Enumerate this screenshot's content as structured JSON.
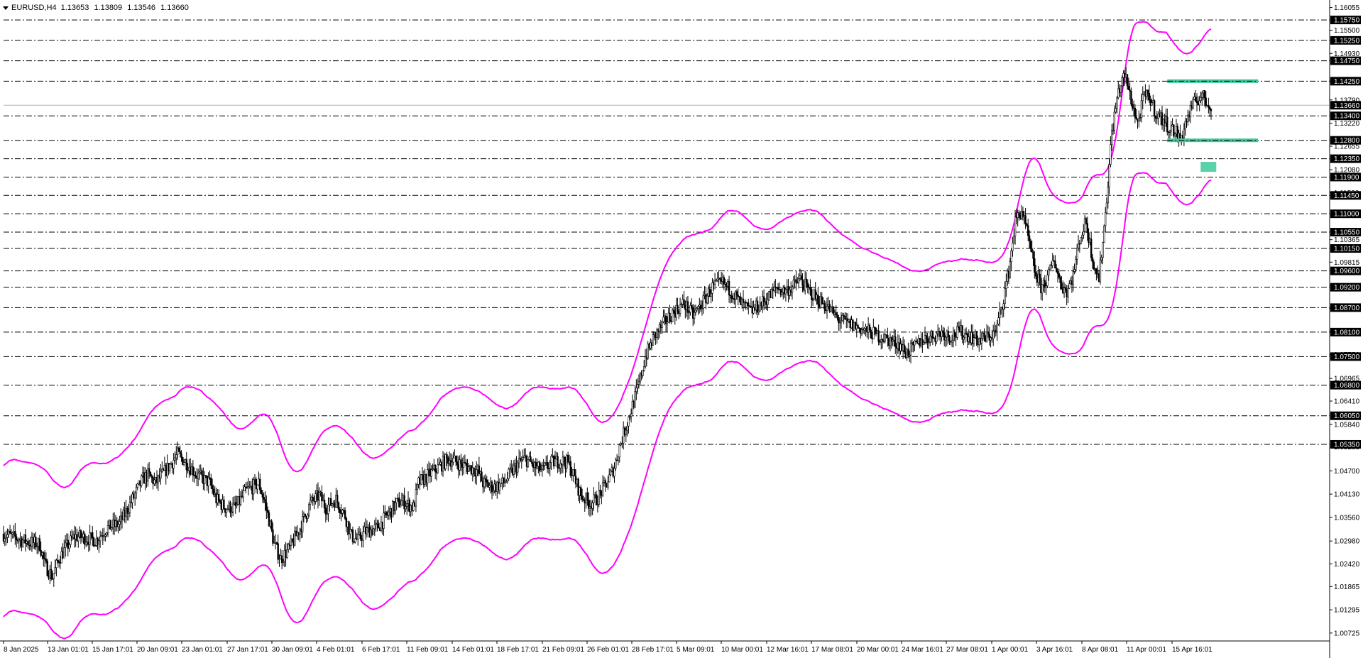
{
  "header": {
    "symbol": "EURUSD,H4",
    "ohlc": [
      "1.13653",
      "1.13809",
      "1.13546",
      "1.13660"
    ]
  },
  "colors": {
    "background": "#ffffff",
    "candle": "#000000",
    "envelope": "#ff00ff",
    "level_line": "#000000",
    "zone": "#3cc99a",
    "current_price_bg": "#000000",
    "current_price_line": "#b0b0b0"
  },
  "chart_data": {
    "type": "candlestick",
    "symbol": "EURUSD",
    "timeframe": "H4",
    "ylim": [
      1.0067,
      1.161
    ],
    "grid": false,
    "y_ticks": [
      "1.16055",
      "1.15500",
      "1.14930",
      "1.14250",
      "1.13790",
      "1.13220",
      "1.12655",
      "1.12080",
      "1.11520",
      "1.10365",
      "1.09815",
      "1.09240",
      "1.08685",
      "1.08110",
      "1.07550",
      "1.06965",
      "1.06410",
      "1.05840",
      "1.05285",
      "1.04700",
      "1.04130",
      "1.03560",
      "1.02980",
      "1.02420",
      "1.01865",
      "1.01295",
      "1.00725"
    ],
    "levels": [
      "1.15750",
      "1.15250",
      "1.14750",
      "1.14250",
      "1.13400",
      "1.12800",
      "1.12350",
      "1.11900",
      "1.11450",
      "1.11000",
      "1.10550",
      "1.10150",
      "1.09600",
      "1.09200",
      "1.08700",
      "1.08100",
      "1.07500",
      "1.06800",
      "1.06050",
      "1.05350"
    ],
    "current_price": "1.13660",
    "x_labels": [
      "8 Jan 2025",
      "13 Jan 01:01",
      "15 Jan 17:01",
      "20 Jan 09:01",
      "23 Jan 01:01",
      "27 Jan 17:01",
      "30 Jan 09:01",
      "4 Feb 01:01",
      "6 Feb 17:01",
      "11 Feb 09:01",
      "14 Feb 01:01",
      "18 Feb 17:01",
      "21 Feb 09:01",
      "26 Feb 01:01",
      "28 Feb 17:01",
      "5 Mar 09:01",
      "10 Mar 00:01",
      "12 Mar 16:01",
      "17 Mar 08:01",
      "20 Mar 00:01",
      "24 Mar 16:01",
      "27 Mar 08:01",
      "1 Apr 00:01",
      "3 Apr 16:01",
      "8 Apr 08:01",
      "11 Apr 00:01",
      "15 Apr 16:01"
    ],
    "close_path": [
      [
        0,
        1.0315
      ],
      [
        10,
        1.0305
      ],
      [
        20,
        1.0295
      ],
      [
        28,
        1.029
      ],
      [
        32,
        1.024
      ],
      [
        38,
        1.021
      ],
      [
        43,
        1.0255
      ],
      [
        48,
        1.028
      ],
      [
        55,
        1.031
      ],
      [
        65,
        1.0305
      ],
      [
        72,
        1.03
      ],
      [
        80,
        1.033
      ],
      [
        90,
        1.034
      ],
      [
        100,
        1.04
      ],
      [
        108,
        1.045
      ],
      [
        112,
        1.046
      ],
      [
        118,
        1.044
      ],
      [
        128,
        1.048
      ],
      [
        135,
        1.051
      ],
      [
        142,
        1.049
      ],
      [
        150,
        1.046
      ],
      [
        160,
        1.044
      ],
      [
        165,
        1.04
      ],
      [
        172,
        1.038
      ],
      [
        180,
        1.038
      ],
      [
        188,
        1.042
      ],
      [
        198,
        1.044
      ],
      [
        202,
        1.04
      ],
      [
        206,
        1.035
      ],
      [
        210,
        1.029
      ],
      [
        215,
        1.0255
      ],
      [
        222,
        1.028
      ],
      [
        230,
        1.033
      ],
      [
        238,
        1.039
      ],
      [
        245,
        1.041
      ],
      [
        250,
        1.038
      ],
      [
        258,
        1.04
      ],
      [
        265,
        1.036
      ],
      [
        270,
        1.031
      ],
      [
        275,
        1.03
      ],
      [
        280,
        1.032
      ],
      [
        290,
        1.033
      ],
      [
        300,
        1.037
      ],
      [
        305,
        1.039
      ],
      [
        310,
        1.0395
      ],
      [
        318,
        1.038
      ],
      [
        322,
        1.044
      ],
      [
        330,
        1.046
      ],
      [
        338,
        1.048
      ],
      [
        345,
        1.05
      ],
      [
        352,
        1.049
      ],
      [
        360,
        1.048
      ],
      [
        368,
        1.047
      ],
      [
        372,
        1.044
      ],
      [
        380,
        1.043
      ],
      [
        388,
        1.044
      ],
      [
        395,
        1.047
      ],
      [
        400,
        1.049
      ],
      [
        405,
        1.05
      ],
      [
        412,
        1.048
      ],
      [
        418,
        1.047
      ],
      [
        425,
        1.049
      ],
      [
        432,
        1.0495
      ],
      [
        438,
        1.049
      ],
      [
        442,
        1.046
      ],
      [
        448,
        1.041
      ],
      [
        455,
        1.039
      ],
      [
        460,
        1.04
      ],
      [
        468,
        1.044
      ],
      [
        474,
        1.048
      ],
      [
        478,
        1.053
      ],
      [
        485,
        1.06
      ],
      [
        492,
        1.067
      ],
      [
        498,
        1.075
      ],
      [
        505,
        1.08
      ],
      [
        512,
        1.083
      ],
      [
        520,
        1.086
      ],
      [
        528,
        1.088
      ],
      [
        535,
        1.085
      ],
      [
        542,
        1.088
      ],
      [
        550,
        1.092
      ],
      [
        558,
        1.093
      ],
      [
        565,
        1.091
      ],
      [
        572,
        1.088
      ],
      [
        580,
        1.086
      ],
      [
        588,
        1.088
      ],
      [
        595,
        1.09
      ],
      [
        600,
        1.092
      ],
      [
        605,
        1.091
      ],
      [
        612,
        1.092
      ],
      [
        618,
        1.094
      ],
      [
        625,
        1.091
      ],
      [
        632,
        1.089
      ],
      [
        640,
        1.087
      ],
      [
        648,
        1.084
      ],
      [
        656,
        1.083
      ],
      [
        664,
        1.082
      ],
      [
        672,
        1.081
      ],
      [
        680,
        1.08
      ],
      [
        688,
        1.079
      ],
      [
        695,
        1.078
      ],
      [
        700,
        1.076
      ],
      [
        706,
        1.077
      ],
      [
        712,
        1.079
      ],
      [
        720,
        1.08
      ],
      [
        728,
        1.081
      ],
      [
        735,
        1.08
      ],
      [
        742,
        1.081
      ],
      [
        750,
        1.08
      ],
      [
        758,
        1.079
      ],
      [
        765,
        1.08
      ],
      [
        770,
        1.081
      ],
      [
        775,
        1.088
      ],
      [
        780,
        1.096
      ],
      [
        785,
        1.108
      ],
      [
        790,
        1.111
      ],
      [
        795,
        1.104
      ],
      [
        800,
        1.096
      ],
      [
        805,
        1.092
      ],
      [
        810,
        1.094
      ],
      [
        815,
        1.099
      ],
      [
        820,
        1.093
      ],
      [
        825,
        1.091
      ],
      [
        830,
        1.095
      ],
      [
        835,
        1.104
      ],
      [
        840,
        1.108
      ],
      [
        845,
        1.099
      ],
      [
        850,
        1.094
      ],
      [
        855,
        1.11
      ],
      [
        860,
        1.13
      ],
      [
        865,
        1.14
      ],
      [
        870,
        1.144
      ],
      [
        875,
        1.138
      ],
      [
        880,
        1.132
      ],
      [
        885,
        1.139
      ],
      [
        890,
        1.138
      ],
      [
        895,
        1.134
      ],
      [
        900,
        1.133
      ],
      [
        905,
        1.131
      ],
      [
        910,
        1.13
      ],
      [
        913,
        1.128
      ],
      [
        918,
        1.133
      ],
      [
        922,
        1.136
      ],
      [
        926,
        1.138
      ],
      [
        930,
        1.139
      ],
      [
        934,
        1.137
      ],
      [
        937,
        1.1366
      ]
    ]
  }
}
